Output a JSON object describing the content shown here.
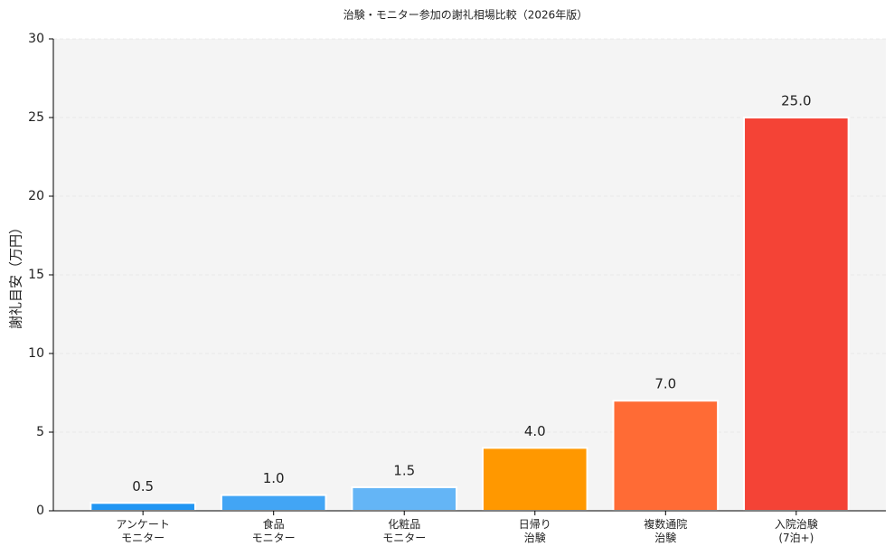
{
  "chart_data": {
    "type": "bar",
    "title": "治験・モニター参加の謝礼相場比較（2026年版）",
    "y_label": "謝礼目安（万円）",
    "categories": [
      "アンケート\nモニター",
      "食品\nモニター",
      "化粧品\nモニター",
      "日帰り\n治験",
      "複数通院\n治験",
      "入院治験\n(7泊+)"
    ],
    "values": [
      0.5,
      1.0,
      1.5,
      4.0,
      7.0,
      25.0
    ],
    "value_labels": [
      "0.5",
      "1.0",
      "1.5",
      "4.0",
      "7.0",
      "25.0"
    ],
    "colors": [
      "#2196f3",
      "#42a5f5",
      "#64b5f6",
      "#ff9800",
      "#ff6b35",
      "#f44336"
    ],
    "ylim": [
      0,
      30
    ],
    "yticks": [
      0,
      5,
      10,
      15,
      20,
      25,
      30
    ],
    "grid": true
  }
}
